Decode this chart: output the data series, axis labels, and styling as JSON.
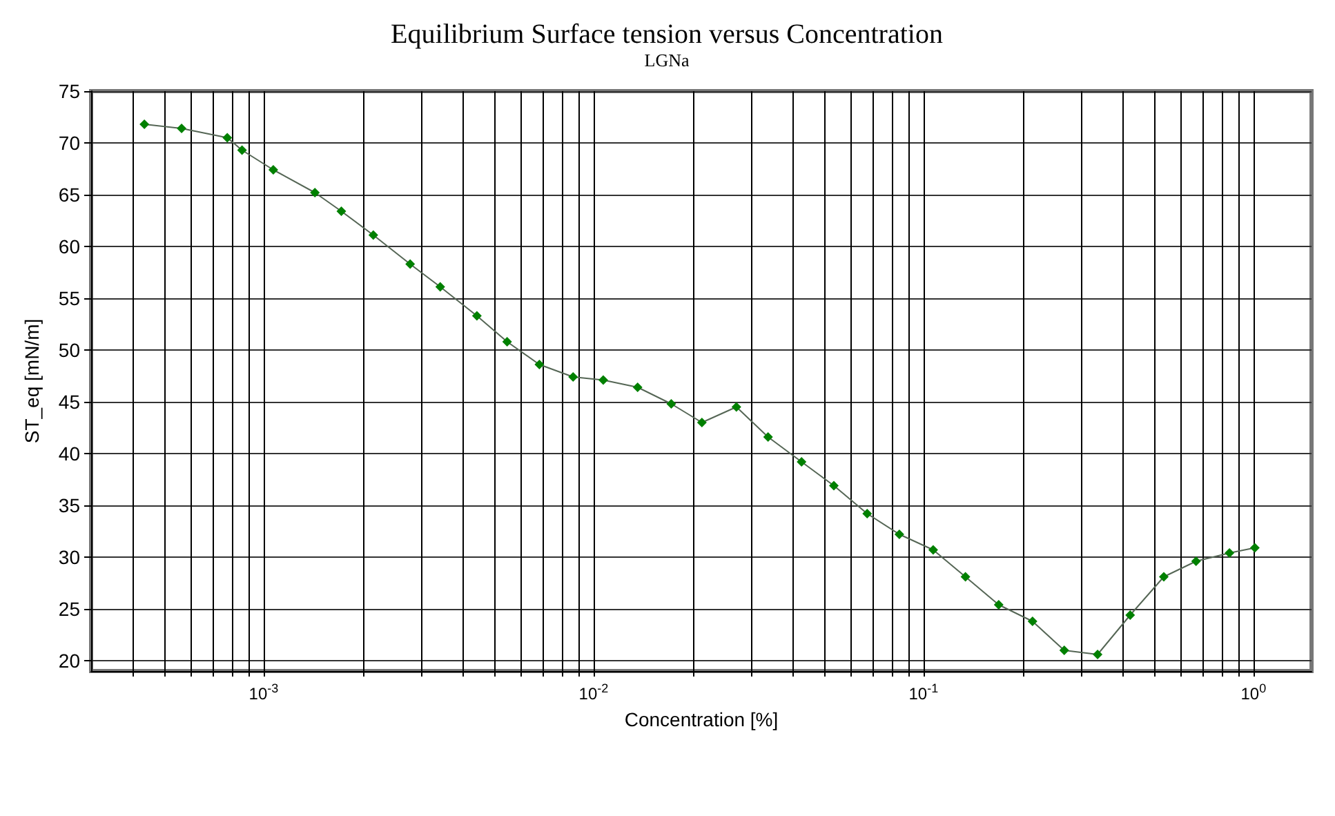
{
  "chart_data": {
    "type": "line",
    "title": "Equilibrium Surface tension versus Concentration",
    "subtitle": "LGNa",
    "xlabel": "Concentration [%]",
    "ylabel": "ST_eq [mN/m]",
    "x": [
      0.000435,
      0.000564,
      0.000776,
      0.00086,
      0.00107,
      0.00143,
      0.00172,
      0.00215,
      0.00278,
      0.00343,
      0.00443,
      0.00547,
      0.00685,
      0.00867,
      0.0107,
      0.0136,
      0.0172,
      0.0213,
      0.0271,
      0.0338,
      0.0427,
      0.0535,
      0.0675,
      0.0845,
      0.107,
      0.134,
      0.169,
      0.214,
      0.267,
      0.337,
      0.423,
      0.535,
      0.67,
      0.846,
      1.01
    ],
    "series": [
      {
        "color": "#008000",
        "values": [
          71.8,
          71.4,
          70.5,
          69.3,
          67.4,
          65.2,
          63.4,
          61.1,
          58.3,
          56.1,
          53.3,
          50.8,
          48.6,
          47.4,
          47.1,
          46.4,
          44.8,
          43.0,
          44.5,
          41.6,
          39.2,
          36.9,
          34.2,
          32.2,
          30.7,
          28.1,
          25.4,
          23.8,
          21.0,
          20.6,
          24.4,
          28.1,
          29.6,
          30.4,
          30.9
        ]
      }
    ],
    "log": "x",
    "xlim": [
      0.0003,
      1.5
    ],
    "ylim": [
      19,
      75
    ],
    "xticks": [
      {
        "value": 0.0004,
        "label": null
      },
      {
        "value": 0.0005,
        "label": null
      },
      {
        "value": 0.0006,
        "label": null
      },
      {
        "value": 0.0007,
        "label": null
      },
      {
        "value": 0.0008,
        "label": null
      },
      {
        "value": 0.0009,
        "label": null
      },
      {
        "value": 0.001,
        "label": "10$^{-3}$"
      },
      {
        "value": 0.002,
        "label": null
      },
      {
        "value": 0.003,
        "label": null
      },
      {
        "value": 0.004,
        "label": null
      },
      {
        "value": 0.005,
        "label": null
      },
      {
        "value": 0.006,
        "label": null
      },
      {
        "value": 0.007,
        "label": null
      },
      {
        "value": 0.008,
        "label": null
      },
      {
        "value": 0.009,
        "label": null
      },
      {
        "value": 0.01,
        "label": "10$^{-2}$"
      },
      {
        "value": 0.02,
        "label": null
      },
      {
        "value": 0.03,
        "label": null
      },
      {
        "value": 0.04,
        "label": null
      },
      {
        "value": 0.05,
        "label": null
      },
      {
        "value": 0.06,
        "label": null
      },
      {
        "value": 0.07,
        "label": null
      },
      {
        "value": 0.08,
        "label": null
      },
      {
        "value": 0.09,
        "label": null
      },
      {
        "value": 0.1,
        "label": "10$^{-1}$"
      },
      {
        "value": 0.2,
        "label": null
      },
      {
        "value": 0.3,
        "label": null
      },
      {
        "value": 0.4,
        "label": null
      },
      {
        "value": 0.5,
        "label": null
      },
      {
        "value": 0.6,
        "label": null
      },
      {
        "value": 0.7,
        "label": null
      },
      {
        "value": 0.8,
        "label": null
      },
      {
        "value": 0.9,
        "label": null
      },
      {
        "value": 1,
        "label": "10$^{0}$"
      }
    ],
    "yticks": [
      20,
      25,
      30,
      35,
      40,
      45,
      50,
      55,
      60,
      65,
      70,
      75
    ],
    "grid": true,
    "marker": "diamond",
    "line_style": "solid"
  }
}
